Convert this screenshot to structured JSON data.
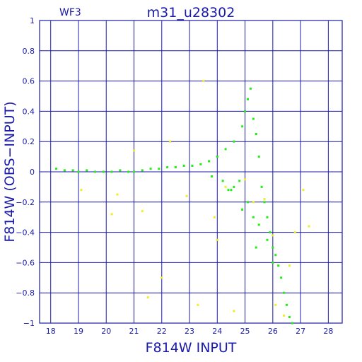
{
  "chart_data": {
    "type": "scatter",
    "title": "m31_u28302",
    "corner_label": "WF3",
    "xlabel": "F814W INPUT",
    "ylabel": "F814W (OBS−INPUT)",
    "xlim": [
      17.6,
      28.5
    ],
    "ylim": [
      -1,
      1
    ],
    "xticks": [
      18,
      19,
      20,
      21,
      22,
      23,
      24,
      25,
      26,
      27,
      28
    ],
    "yticks": [
      -1,
      -0.8,
      -0.6,
      -0.4,
      -0.2,
      0,
      0.2,
      0.4,
      0.6,
      0.8,
      1
    ],
    "grid": true,
    "colors": {
      "axes": "#1a1aa8",
      "main": "#22ee11",
      "secondary": "#eeee22"
    },
    "series": [
      {
        "color_key": "main",
        "x": [
          18.2,
          18.5,
          18.8,
          19.0,
          19.3,
          19.6,
          19.9,
          20.2,
          20.5,
          20.8,
          21.0,
          21.3,
          21.6,
          21.9,
          22.2,
          22.5,
          22.8,
          23.1,
          23.4,
          23.7,
          24.0,
          24.3,
          24.6,
          24.9,
          25.0,
          25.1,
          25.2,
          25.3,
          25.4,
          25.5,
          25.6,
          25.7,
          25.8,
          25.9,
          26.0,
          26.1,
          26.2,
          26.3,
          26.4,
          26.5,
          26.6,
          26.7,
          24.8,
          24.6,
          24.4,
          25.1,
          25.3,
          25.5,
          25.8,
          26.0,
          24.5,
          23.8,
          24.2,
          24.9,
          25.4
        ],
        "y": [
          0.02,
          0.01,
          0.01,
          0.0,
          0.01,
          0.0,
          0.0,
          0.0,
          0.01,
          0.0,
          0.0,
          0.01,
          0.02,
          0.02,
          0.03,
          0.03,
          0.04,
          0.04,
          0.05,
          0.07,
          0.1,
          0.15,
          0.2,
          0.3,
          0.4,
          0.48,
          0.55,
          0.35,
          0.25,
          0.1,
          -0.1,
          -0.2,
          -0.3,
          -0.4,
          -0.5,
          -0.55,
          -0.62,
          -0.7,
          -0.8,
          -0.88,
          -0.96,
          -1.0,
          -0.06,
          -0.1,
          -0.12,
          -0.2,
          -0.3,
          -0.35,
          -0.45,
          -0.6,
          -0.12,
          -0.03,
          -0.06,
          -0.25,
          -0.5
        ]
      },
      {
        "color_key": "secondary",
        "x": [
          19.1,
          20.2,
          20.4,
          21.3,
          21.5,
          22.3,
          22.9,
          23.5,
          24.3,
          25.0,
          25.3,
          25.7,
          26.0,
          26.1,
          26.4,
          26.6,
          26.8,
          27.1,
          27.3,
          23.3,
          22.0,
          21.0,
          24.6,
          23.9,
          24.0
        ],
        "y": [
          -0.12,
          -0.28,
          -0.15,
          -0.26,
          -0.83,
          0.2,
          -0.16,
          0.6,
          -0.1,
          -0.05,
          -0.2,
          -0.18,
          -0.42,
          -0.88,
          -0.95,
          -0.62,
          -0.4,
          -0.12,
          -0.36,
          -0.88,
          -0.7,
          0.14,
          -0.92,
          -0.3,
          -0.45
        ]
      }
    ]
  }
}
